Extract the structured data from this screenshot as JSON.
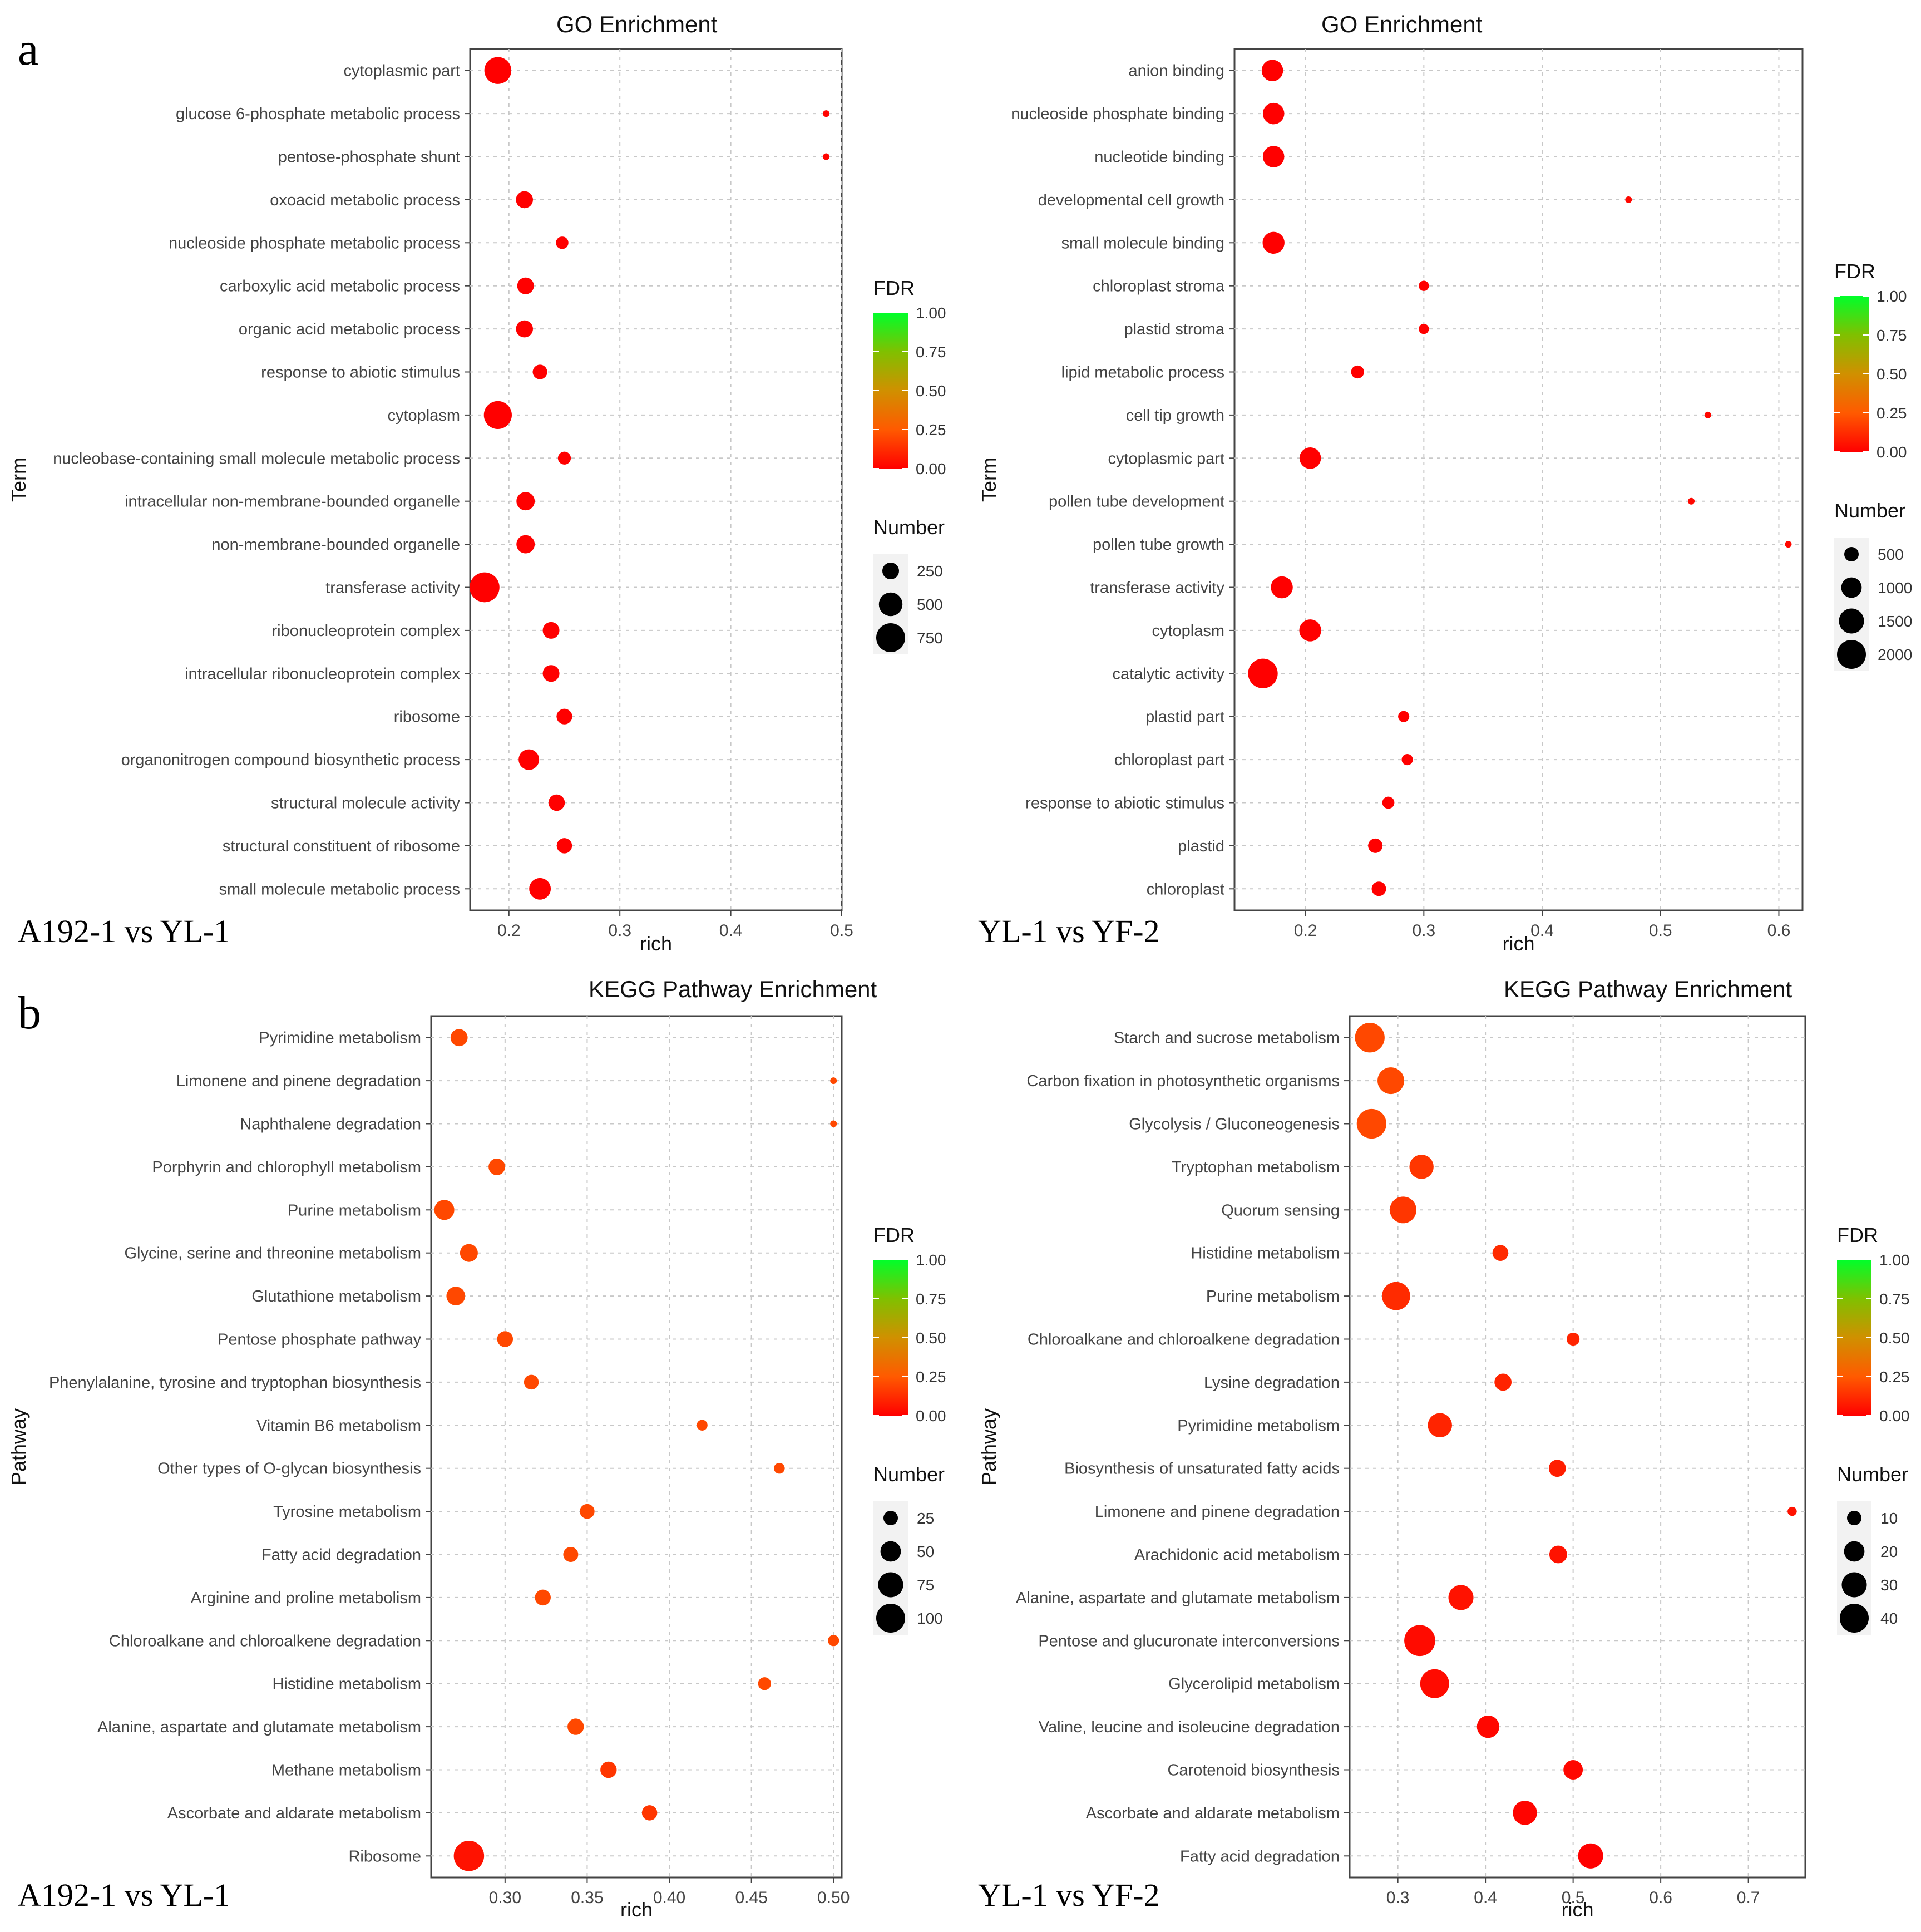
{
  "panels": {
    "a": {
      "letter": "a"
    },
    "b": {
      "letter": "b"
    }
  },
  "colors": {
    "fdr_low": "#ff0000",
    "fdr_mid": "#f0a000",
    "fdr_high": "#00ff2a",
    "grid": "#c8c8c8"
  },
  "chart_data": [
    {
      "type": "scatter",
      "title": "GO Enrichment",
      "comparison": "A192-1 vs YL-1",
      "xlabel": "rich",
      "ylabel": "Term",
      "xlim": [
        0.165,
        0.5
      ],
      "xticks": [
        0.2,
        0.3,
        0.4,
        0.5
      ],
      "xtick_labels": [
        "0.2",
        "0.3",
        "0.4",
        "0.5"
      ],
      "legend": {
        "fdr_title": "FDR",
        "fdr_ticks": [
          "1.00",
          "0.75",
          "0.50",
          "0.25",
          "0.00"
        ],
        "number_title": "Number",
        "number_values": [
          250,
          500,
          750
        ],
        "number_labels": [
          "250",
          "500",
          "750"
        ]
      },
      "points": [
        {
          "term": "cytoplasmic part",
          "rich": 0.19,
          "number": 650,
          "fdr": 0.0
        },
        {
          "term": "glucose 6-phosphate metabolic process",
          "rich": 0.486,
          "number": 12,
          "fdr": 0.01
        },
        {
          "term": "pentose-phosphate shunt",
          "rich": 0.486,
          "number": 12,
          "fdr": 0.01
        },
        {
          "term": "oxoacid metabolic process",
          "rich": 0.214,
          "number": 260,
          "fdr": 0.0
        },
        {
          "term": "nucleoside phosphate metabolic process",
          "rich": 0.248,
          "number": 140,
          "fdr": 0.0
        },
        {
          "term": "carboxylic acid metabolic process",
          "rich": 0.215,
          "number": 250,
          "fdr": 0.0
        },
        {
          "term": "organic acid metabolic process",
          "rich": 0.214,
          "number": 260,
          "fdr": 0.0
        },
        {
          "term": "response to abiotic stimulus",
          "rich": 0.228,
          "number": 190,
          "fdr": 0.0
        },
        {
          "term": "cytoplasm",
          "rich": 0.19,
          "number": 700,
          "fdr": 0.0
        },
        {
          "term": "nucleobase-containing small molecule metabolic process",
          "rich": 0.25,
          "number": 150,
          "fdr": 0.0
        },
        {
          "term": "intracellular non-membrane-bounded organelle",
          "rich": 0.215,
          "number": 300,
          "fdr": 0.0
        },
        {
          "term": "non-membrane-bounded organelle",
          "rich": 0.215,
          "number": 300,
          "fdr": 0.0
        },
        {
          "term": "transferase activity",
          "rich": 0.178,
          "number": 800,
          "fdr": 0.0
        },
        {
          "term": "ribonucleoprotein complex",
          "rich": 0.238,
          "number": 250,
          "fdr": 0.0
        },
        {
          "term": "intracellular ribonucleoprotein complex",
          "rich": 0.238,
          "number": 250,
          "fdr": 0.0
        },
        {
          "term": "ribosome",
          "rich": 0.25,
          "number": 220,
          "fdr": 0.0
        },
        {
          "term": "organonitrogen compound biosynthetic process",
          "rich": 0.218,
          "number": 380,
          "fdr": 0.0
        },
        {
          "term": "structural molecule activity",
          "rich": 0.243,
          "number": 240,
          "fdr": 0.0
        },
        {
          "term": "structural constituent of ribosome",
          "rich": 0.25,
          "number": 210,
          "fdr": 0.0
        },
        {
          "term": "small molecule metabolic process",
          "rich": 0.228,
          "number": 420,
          "fdr": 0.0
        }
      ]
    },
    {
      "type": "scatter",
      "title": "GO Enrichment",
      "comparison": "YL-1 vs YF-2",
      "xlabel": "rich",
      "ylabel": "Term",
      "xlim": [
        0.14,
        0.62
      ],
      "xticks": [
        0.2,
        0.3,
        0.4,
        0.5,
        0.6
      ],
      "xtick_labels": [
        "0.2",
        "0.3",
        "0.4",
        "0.5",
        "0.6"
      ],
      "legend": {
        "fdr_title": "FDR",
        "fdr_ticks": [
          "1.00",
          "0.75",
          "0.50",
          "0.25",
          "0.00"
        ],
        "number_title": "Number",
        "number_values": [
          500,
          1000,
          1500,
          2000
        ],
        "number_labels": [
          "500",
          "1000",
          "1500",
          "2000"
        ]
      },
      "points": [
        {
          "term": "anion binding",
          "rich": 0.172,
          "number": 1100,
          "fdr": 0.0
        },
        {
          "term": "nucleoside phosphate binding",
          "rich": 0.173,
          "number": 1100,
          "fdr": 0.0
        },
        {
          "term": "nucleotide binding",
          "rich": 0.173,
          "number": 1100,
          "fdr": 0.0
        },
        {
          "term": "developmental cell growth",
          "rich": 0.473,
          "number": 60,
          "fdr": 0.02
        },
        {
          "term": "small molecule binding",
          "rich": 0.173,
          "number": 1150,
          "fdr": 0.0
        },
        {
          "term": "chloroplast stroma",
          "rich": 0.3,
          "number": 250,
          "fdr": 0.0
        },
        {
          "term": "plastid stroma",
          "rich": 0.3,
          "number": 250,
          "fdr": 0.0
        },
        {
          "term": "lipid metabolic process",
          "rich": 0.244,
          "number": 400,
          "fdr": 0.0
        },
        {
          "term": "cell tip growth",
          "rich": 0.54,
          "number": 50,
          "fdr": 0.02
        },
        {
          "term": "cytoplasmic part",
          "rich": 0.204,
          "number": 1100,
          "fdr": 0.0
        },
        {
          "term": "pollen tube development",
          "rich": 0.526,
          "number": 50,
          "fdr": 0.02
        },
        {
          "term": "pollen tube growth",
          "rich": 0.608,
          "number": 40,
          "fdr": 0.02
        },
        {
          "term": "transferase activity",
          "rich": 0.18,
          "number": 1150,
          "fdr": 0.0
        },
        {
          "term": "cytoplasm",
          "rich": 0.204,
          "number": 1150,
          "fdr": 0.0
        },
        {
          "term": "catalytic activity",
          "rich": 0.164,
          "number": 2100,
          "fdr": 0.0
        },
        {
          "term": "plastid part",
          "rich": 0.283,
          "number": 300,
          "fdr": 0.0
        },
        {
          "term": "chloroplast part",
          "rich": 0.286,
          "number": 300,
          "fdr": 0.0
        },
        {
          "term": "response to abiotic stimulus",
          "rich": 0.27,
          "number": 350,
          "fdr": 0.0
        },
        {
          "term": "plastid",
          "rich": 0.259,
          "number": 500,
          "fdr": 0.0
        },
        {
          "term": "chloroplast",
          "rich": 0.262,
          "number": 500,
          "fdr": 0.0
        }
      ]
    },
    {
      "type": "scatter",
      "title": "KEGG Pathway Enrichment",
      "comparison": "A192-1 vs YL-1",
      "xlabel": "rich",
      "ylabel": "Pathway",
      "xlim": [
        0.255,
        0.505
      ],
      "xticks": [
        0.3,
        0.35,
        0.4,
        0.45,
        0.5
      ],
      "xtick_labels": [
        "0.30",
        "0.35",
        "0.40",
        "0.45",
        "0.50"
      ],
      "legend": {
        "fdr_title": "FDR",
        "fdr_ticks": [
          "1.00",
          "0.75",
          "0.50",
          "0.25",
          "0.00"
        ],
        "number_title": "Number",
        "number_values": [
          25,
          50,
          75,
          100
        ],
        "number_labels": [
          "25",
          "50",
          "75",
          "100"
        ]
      },
      "points": [
        {
          "term": "Pyrimidine metabolism",
          "rich": 0.272,
          "number": 35,
          "fdr": 0.2
        },
        {
          "term": "Limonene and pinene degradation",
          "rich": 0.5,
          "number": 5,
          "fdr": 0.2
        },
        {
          "term": "Naphthalene degradation",
          "rich": 0.5,
          "number": 5,
          "fdr": 0.2
        },
        {
          "term": "Porphyrin and chlorophyll metabolism",
          "rich": 0.295,
          "number": 33,
          "fdr": 0.2
        },
        {
          "term": "Purine metabolism",
          "rich": 0.263,
          "number": 48,
          "fdr": 0.2
        },
        {
          "term": "Glycine, serine and threonine metabolism",
          "rich": 0.278,
          "number": 38,
          "fdr": 0.2
        },
        {
          "term": "Glutathione metabolism",
          "rich": 0.27,
          "number": 42,
          "fdr": 0.2
        },
        {
          "term": "Pentose phosphate pathway",
          "rich": 0.3,
          "number": 30,
          "fdr": 0.2
        },
        {
          "term": "Phenylalanine, tyrosine and tryptophan biosynthesis",
          "rich": 0.316,
          "number": 26,
          "fdr": 0.2
        },
        {
          "term": "Vitamin B6 metabolism",
          "rich": 0.42,
          "number": 14,
          "fdr": 0.2
        },
        {
          "term": "Other types of O-glycan biosynthesis",
          "rich": 0.467,
          "number": 14,
          "fdr": 0.2
        },
        {
          "term": "Tyrosine metabolism",
          "rich": 0.35,
          "number": 26,
          "fdr": 0.2
        },
        {
          "term": "Fatty acid degradation",
          "rich": 0.34,
          "number": 27,
          "fdr": 0.2
        },
        {
          "term": "Arginine and proline metabolism",
          "rich": 0.323,
          "number": 30,
          "fdr": 0.2
        },
        {
          "term": "Chloroalkane and chloroalkene degradation",
          "rich": 0.5,
          "number": 15,
          "fdr": 0.2
        },
        {
          "term": "Histidine metabolism",
          "rich": 0.458,
          "number": 20,
          "fdr": 0.2
        },
        {
          "term": "Alanine, aspartate and glutamate metabolism",
          "rich": 0.343,
          "number": 32,
          "fdr": 0.2
        },
        {
          "term": "Methane metabolism",
          "rich": 0.363,
          "number": 32,
          "fdr": 0.15
        },
        {
          "term": "Ascorbate and aldarate metabolism",
          "rich": 0.388,
          "number": 28,
          "fdr": 0.15
        },
        {
          "term": "Ribosome",
          "rich": 0.278,
          "number": 110,
          "fdr": 0.05
        }
      ]
    },
    {
      "type": "scatter",
      "title": "KEGG Pathway Enrichment",
      "comparison": "YL-1 vs YF-2",
      "xlabel": "rich",
      "ylabel": "Pathway",
      "xlim": [
        0.245,
        0.765
      ],
      "xticks": [
        0.3,
        0.4,
        0.5,
        0.6,
        0.7
      ],
      "xtick_labels": [
        "0.3",
        "0.4",
        "0.5",
        "0.6",
        "0.7"
      ],
      "legend": {
        "fdr_title": "FDR",
        "fdr_ticks": [
          "1.00",
          "0.75",
          "0.50",
          "0.25",
          "0.00"
        ],
        "number_title": "Number",
        "number_values": [
          10,
          20,
          30,
          40
        ],
        "number_labels": [
          "10",
          "20",
          "30",
          "40"
        ]
      },
      "points": [
        {
          "term": "Starch and sucrose metabolism",
          "rich": 0.268,
          "number": 42,
          "fdr": 0.2
        },
        {
          "term": "Carbon fixation in photosynthetic organisms",
          "rich": 0.292,
          "number": 34,
          "fdr": 0.2
        },
        {
          "term": "Glycolysis / Gluconeogenesis",
          "rich": 0.27,
          "number": 42,
          "fdr": 0.2
        },
        {
          "term": "Tryptophan metabolism",
          "rich": 0.327,
          "number": 28,
          "fdr": 0.15
        },
        {
          "term": "Quorum sensing",
          "rich": 0.306,
          "number": 34,
          "fdr": 0.15
        },
        {
          "term": "Histidine metabolism",
          "rich": 0.417,
          "number": 12,
          "fdr": 0.12
        },
        {
          "term": "Purine metabolism",
          "rich": 0.298,
          "number": 38,
          "fdr": 0.12
        },
        {
          "term": "Chloroalkane and chloroalkene degradation",
          "rich": 0.5,
          "number": 8,
          "fdr": 0.1
        },
        {
          "term": "Lysine degradation",
          "rich": 0.42,
          "number": 14,
          "fdr": 0.1
        },
        {
          "term": "Pyrimidine metabolism",
          "rich": 0.348,
          "number": 28,
          "fdr": 0.1
        },
        {
          "term": "Biosynthesis of unsaturated fatty acids",
          "rich": 0.482,
          "number": 14,
          "fdr": 0.08
        },
        {
          "term": "Limonene and pinene degradation",
          "rich": 0.75,
          "number": 4,
          "fdr": 0.05
        },
        {
          "term": "Arachidonic acid metabolism",
          "rich": 0.483,
          "number": 15,
          "fdr": 0.05
        },
        {
          "term": "Alanine, aspartate and glutamate metabolism",
          "rich": 0.372,
          "number": 30,
          "fdr": 0.05
        },
        {
          "term": "Pentose and glucuronate interconversions",
          "rich": 0.325,
          "number": 46,
          "fdr": 0.03
        },
        {
          "term": "Glycerolipid metabolism",
          "rich": 0.342,
          "number": 40,
          "fdr": 0.03
        },
        {
          "term": "Valine, leucine and isoleucine degradation",
          "rich": 0.403,
          "number": 24,
          "fdr": 0.02
        },
        {
          "term": "Carotenoid biosynthesis",
          "rich": 0.5,
          "number": 18,
          "fdr": 0.02
        },
        {
          "term": "Ascorbate and aldarate metabolism",
          "rich": 0.445,
          "number": 28,
          "fdr": 0.01
        },
        {
          "term": "Fatty acid degradation",
          "rich": 0.52,
          "number": 30,
          "fdr": 0.0
        }
      ]
    }
  ]
}
